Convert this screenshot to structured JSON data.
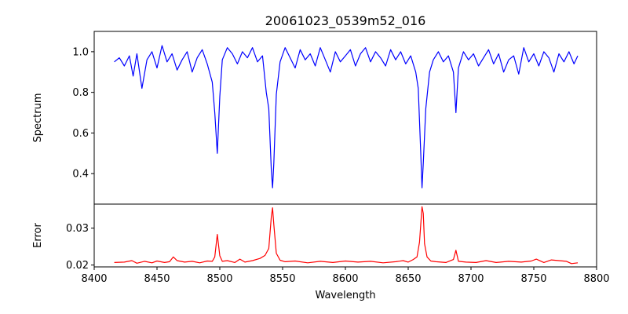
{
  "title": "20061023_0539m52_016",
  "chart_data": [
    {
      "type": "line",
      "panel": "top",
      "ylabel": "Spectrum",
      "xlim": [
        8400,
        8800
      ],
      "ylim": [
        0.25,
        1.1
      ],
      "yticks": [
        0.4,
        0.6,
        0.8,
        1.0
      ],
      "ytick_labels": [
        "0.4",
        "0.6",
        "0.8",
        "1.0"
      ],
      "grid": false,
      "series": [
        {
          "color": "#0000ff",
          "x": [
            8416,
            8420,
            8424,
            8428,
            8431,
            8434,
            8438,
            8442,
            8446,
            8450,
            8454,
            8458,
            8462,
            8466,
            8470,
            8474,
            8478,
            8482,
            8486,
            8490,
            8494,
            8496,
            8498,
            8500,
            8502,
            8506,
            8510,
            8514,
            8518,
            8522,
            8526,
            8530,
            8534,
            8537,
            8539,
            8541,
            8542,
            8543,
            8545,
            8548,
            8552,
            8556,
            8560,
            8564,
            8568,
            8572,
            8576,
            8580,
            8584,
            8588,
            8592,
            8596,
            8600,
            8604,
            8608,
            8612,
            8616,
            8620,
            8624,
            8628,
            8632,
            8636,
            8640,
            8644,
            8648,
            8652,
            8656,
            8658,
            8660,
            8661,
            8662,
            8664,
            8667,
            8670,
            8674,
            8678,
            8682,
            8686,
            8688,
            8690,
            8694,
            8698,
            8702,
            8706,
            8710,
            8714,
            8718,
            8722,
            8726,
            8730,
            8734,
            8738,
            8742,
            8746,
            8750,
            8754,
            8758,
            8762,
            8766,
            8770,
            8774,
            8778,
            8782,
            8785
          ],
          "y": [
            0.95,
            0.97,
            0.93,
            0.98,
            0.88,
            0.99,
            0.82,
            0.96,
            1.0,
            0.92,
            1.03,
            0.95,
            0.99,
            0.91,
            0.96,
            1.0,
            0.9,
            0.97,
            1.01,
            0.94,
            0.85,
            0.7,
            0.5,
            0.78,
            0.96,
            1.02,
            0.99,
            0.94,
            1.0,
            0.97,
            1.02,
            0.95,
            0.98,
            0.8,
            0.72,
            0.42,
            0.33,
            0.45,
            0.79,
            0.95,
            1.02,
            0.97,
            0.92,
            1.01,
            0.96,
            0.99,
            0.93,
            1.02,
            0.96,
            0.9,
            1.0,
            0.95,
            0.98,
            1.01,
            0.93,
            0.99,
            1.02,
            0.95,
            1.0,
            0.97,
            0.93,
            1.01,
            0.96,
            1.0,
            0.94,
            0.98,
            0.9,
            0.82,
            0.5,
            0.33,
            0.45,
            0.72,
            0.9,
            0.96,
            1.0,
            0.95,
            0.98,
            0.9,
            0.7,
            0.92,
            1.0,
            0.96,
            0.99,
            0.93,
            0.97,
            1.01,
            0.94,
            0.99,
            0.9,
            0.96,
            0.98,
            0.89,
            1.02,
            0.95,
            0.99,
            0.93,
            1.0,
            0.97,
            0.9,
            0.99,
            0.95,
            1.0,
            0.94,
            0.98
          ]
        }
      ]
    },
    {
      "type": "line",
      "panel": "bottom",
      "xlabel": "Wavelength",
      "ylabel": "Error",
      "xlim": [
        8400,
        8800
      ],
      "ylim": [
        0.0195,
        0.0365
      ],
      "xticks": [
        8400,
        8450,
        8500,
        8550,
        8600,
        8650,
        8700,
        8750,
        8800
      ],
      "xtick_labels": [
        "8400",
        "8450",
        "8500",
        "8550",
        "8600",
        "8650",
        "8700",
        "8750",
        "8800"
      ],
      "yticks": [
        0.02,
        0.03
      ],
      "ytick_labels": [
        "0.02",
        "0.03"
      ],
      "grid": false,
      "series": [
        {
          "color": "#ff0000",
          "x": [
            8416,
            8424,
            8430,
            8434,
            8440,
            8446,
            8450,
            8456,
            8460,
            8463,
            8466,
            8472,
            8478,
            8484,
            8490,
            8494,
            8496,
            8498,
            8500,
            8502,
            8506,
            8512,
            8516,
            8520,
            8526,
            8532,
            8536,
            8539,
            8541,
            8542,
            8543,
            8545,
            8548,
            8552,
            8560,
            8570,
            8580,
            8590,
            8600,
            8610,
            8620,
            8630,
            8640,
            8646,
            8650,
            8654,
            8657,
            8659,
            8661,
            8662,
            8663,
            8665,
            8668,
            8672,
            8680,
            8686,
            8688,
            8690,
            8696,
            8704,
            8712,
            8720,
            8730,
            8740,
            8748,
            8752,
            8758,
            8764,
            8770,
            8776,
            8780,
            8785
          ],
          "y": [
            0.0207,
            0.0208,
            0.0212,
            0.0205,
            0.021,
            0.0206,
            0.0211,
            0.0207,
            0.0209,
            0.0222,
            0.0212,
            0.0208,
            0.021,
            0.0206,
            0.0211,
            0.021,
            0.0222,
            0.0283,
            0.0225,
            0.021,
            0.0212,
            0.0207,
            0.0216,
            0.0208,
            0.0212,
            0.0218,
            0.0226,
            0.0245,
            0.033,
            0.0355,
            0.031,
            0.0232,
            0.0213,
            0.0209,
            0.0211,
            0.0206,
            0.021,
            0.0207,
            0.0211,
            0.0208,
            0.021,
            0.0206,
            0.0209,
            0.0212,
            0.0208,
            0.0215,
            0.0222,
            0.0262,
            0.0358,
            0.034,
            0.0258,
            0.0222,
            0.0211,
            0.0209,
            0.0207,
            0.0215,
            0.024,
            0.021,
            0.0208,
            0.0207,
            0.0212,
            0.0207,
            0.021,
            0.0208,
            0.0211,
            0.0216,
            0.0207,
            0.0214,
            0.0212,
            0.021,
            0.0204,
            0.0206
          ]
        }
      ]
    }
  ]
}
